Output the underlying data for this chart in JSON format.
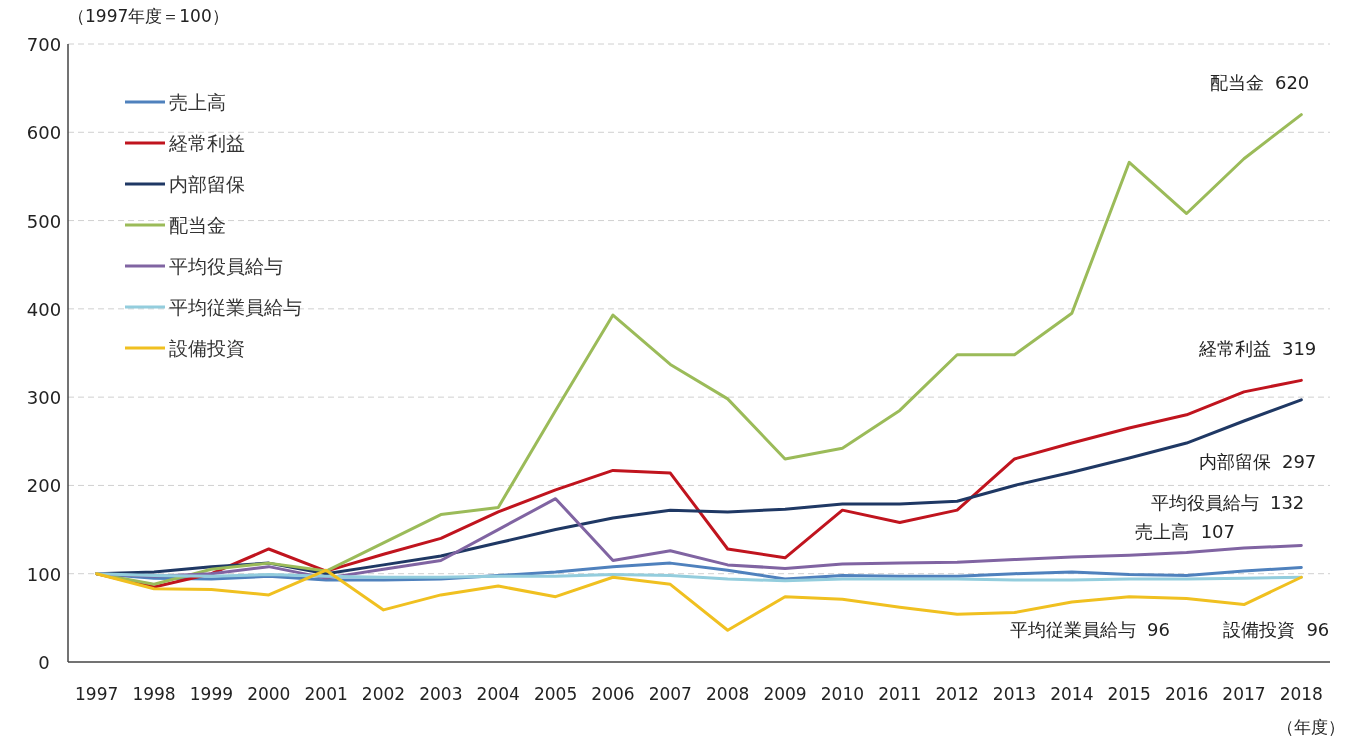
{
  "chart_data": {
    "type": "line",
    "ylabel": "（1997年度＝100）",
    "xlabel": "（年度）",
    "categories": [
      "1997",
      "1998",
      "1999",
      "2000",
      "2001",
      "2002",
      "2003",
      "2004",
      "2005",
      "2006",
      "2007",
      "2008",
      "2009",
      "2010",
      "2011",
      "2012",
      "2013",
      "2014",
      "2015",
      "2016",
      "2017",
      "2018"
    ],
    "ylim": [
      0,
      700
    ],
    "yticks": [
      0,
      100,
      200,
      300,
      400,
      500,
      600,
      700
    ],
    "grid": "y",
    "legend": "top left",
    "marker": "none",
    "line_style": "solid",
    "series": [
      {
        "name": "売上高",
        "color": "#4f81bd",
        "values": [
          100,
          95,
          94,
          97,
          93,
          93,
          94,
          98,
          102,
          108,
          112,
          104,
          94,
          98,
          97,
          97,
          100,
          102,
          99,
          98,
          103,
          107
        ]
      },
      {
        "name": "経常利益",
        "color": "#c0141e",
        "values": [
          100,
          85,
          100,
          128,
          103,
          122,
          140,
          170,
          195,
          217,
          214,
          128,
          118,
          172,
          158,
          172,
          230,
          248,
          265,
          280,
          306,
          319
        ]
      },
      {
        "name": "内部留保",
        "color": "#1f3864",
        "values": [
          100,
          102,
          108,
          112,
          100,
          110,
          120,
          135,
          150,
          163,
          172,
          170,
          173,
          179,
          179,
          182,
          200,
          215,
          231,
          248,
          273,
          297
        ]
      },
      {
        "name": "配当金",
        "color": "#9bbb59",
        "values": [
          100,
          88,
          105,
          112,
          103,
          135,
          167,
          175,
          285,
          393,
          337,
          298,
          230,
          242,
          285,
          348,
          348,
          395,
          566,
          508,
          570,
          620
        ]
      },
      {
        "name": "平均役員給与",
        "color": "#8064a2",
        "values": [
          100,
          97,
          100,
          108,
          95,
          105,
          115,
          150,
          185,
          115,
          126,
          110,
          106,
          111,
          112,
          113,
          116,
          119,
          121,
          124,
          129,
          132
        ]
      },
      {
        "name": "平均従業員給与",
        "color": "#93cddd",
        "values": [
          100,
          98,
          97,
          99,
          97,
          96,
          96,
          97,
          97,
          99,
          98,
          94,
          92,
          94,
          94,
          94,
          93,
          93,
          94,
          94,
          95,
          96
        ]
      },
      {
        "name": "設備投資",
        "color": "#f0c020",
        "values": [
          100,
          83,
          82,
          76,
          104,
          59,
          76,
          86,
          74,
          96,
          88,
          36,
          74,
          71,
          62,
          54,
          56,
          68,
          74,
          72,
          65,
          96
        ]
      }
    ],
    "annotations": [
      {
        "text": "配当金  620",
        "x": "2018",
        "y": 620
      },
      {
        "text": "経常利益  319",
        "x": "2018",
        "y": 319
      },
      {
        "text": "内部留保  297",
        "x": "2018",
        "y": 297
      },
      {
        "text": "平均役員給与  132",
        "x": "2018",
        "y": 132
      },
      "売上高  107",
      "平均従業員給与  96",
      {
        "text": "設備投資  96",
        "x": "2018",
        "y": 96
      }
    ]
  }
}
